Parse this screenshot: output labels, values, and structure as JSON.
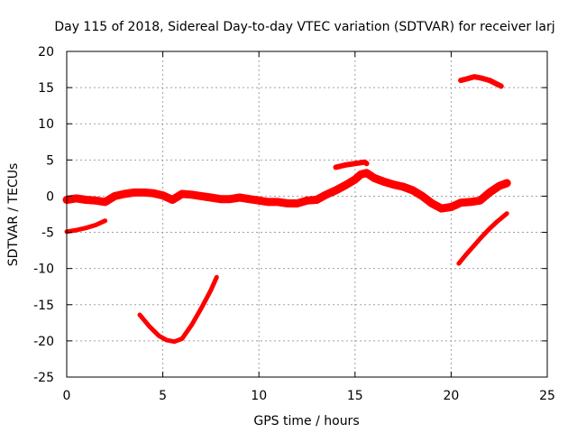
{
  "chart_data": {
    "type": "line",
    "title": "Day 115 of 2018, Sidereal Day-to-day VTEC variation (SDTVAR) for receiver larj",
    "xlabel": "GPS time / hours",
    "ylabel": "SDTVAR / TECUs",
    "xlim": [
      0,
      25
    ],
    "ylim": [
      -25,
      20
    ],
    "xticks": [
      0,
      5,
      10,
      15,
      20,
      25
    ],
    "yticks": [
      -25,
      -20,
      -15,
      -10,
      -5,
      0,
      5,
      10,
      15,
      20
    ],
    "grid": true,
    "series_color": "#ff0000",
    "series": [
      {
        "name": "main",
        "x": [
          0,
          0.5,
          1.0,
          1.5,
          2.0,
          2.5,
          3.0,
          3.5,
          4.0,
          4.5,
          5.0,
          5.5,
          6.0,
          6.5,
          7.0,
          7.5,
          8.0,
          8.5,
          9.0,
          9.5,
          10.0,
          10.5,
          11.0,
          11.5,
          12.0,
          12.5,
          13.0,
          13.5,
          14.0,
          14.5,
          15.0,
          15.3,
          15.6,
          16.0,
          16.5,
          17.0,
          17.5,
          18.0,
          18.5,
          19.0,
          19.5,
          20.0,
          20.5,
          21.0,
          21.5,
          22.0,
          22.5,
          22.9
        ],
        "y": [
          -0.5,
          -0.3,
          -0.5,
          -0.6,
          -0.8,
          0.0,
          0.3,
          0.5,
          0.5,
          0.4,
          0.1,
          -0.5,
          0.3,
          0.2,
          0.0,
          -0.2,
          -0.4,
          -0.4,
          -0.2,
          -0.4,
          -0.6,
          -0.8,
          -0.8,
          -1.0,
          -1.0,
          -0.6,
          -0.5,
          0.2,
          0.8,
          1.5,
          2.3,
          3.0,
          3.2,
          2.5,
          2.0,
          1.6,
          1.3,
          0.8,
          0.0,
          -1.0,
          -1.7,
          -1.5,
          -0.9,
          -0.8,
          -0.6,
          0.5,
          1.4,
          1.8
        ],
        "width": 9
      },
      {
        "name": "bump-14-15.6",
        "x": [
          14.0,
          14.5,
          15.0,
          15.5,
          15.6
        ],
        "y": [
          4.0,
          4.3,
          4.5,
          4.7,
          4.5
        ],
        "width": 6
      },
      {
        "name": "offset-early",
        "x": [
          0,
          0.5,
          1.0,
          1.5,
          2.0
        ],
        "y": [
          -4.9,
          -4.7,
          -4.4,
          -4.0,
          -3.4
        ],
        "width": 5
      },
      {
        "name": "dip-4-8",
        "x": [
          3.8,
          4.3,
          4.8,
          5.2,
          5.6,
          6.0,
          6.5,
          7.0,
          7.5,
          7.8
        ],
        "y": [
          -16.4,
          -18.0,
          -19.3,
          -19.9,
          -20.1,
          -19.7,
          -17.8,
          -15.5,
          -13.0,
          -11.2
        ],
        "width": 5
      },
      {
        "name": "rise-20.4-22.9",
        "x": [
          20.4,
          20.8,
          21.2,
          21.6,
          22.0,
          22.4,
          22.9
        ],
        "y": [
          -9.3,
          -8.0,
          -6.8,
          -5.6,
          -4.5,
          -3.5,
          -2.4
        ],
        "width": 5
      },
      {
        "name": "high-20.5-22.6",
        "x": [
          20.5,
          20.8,
          21.2,
          21.6,
          22.0,
          22.3,
          22.6
        ],
        "y": [
          16.0,
          16.2,
          16.5,
          16.3,
          16.0,
          15.6,
          15.2
        ],
        "width": 6
      }
    ]
  }
}
